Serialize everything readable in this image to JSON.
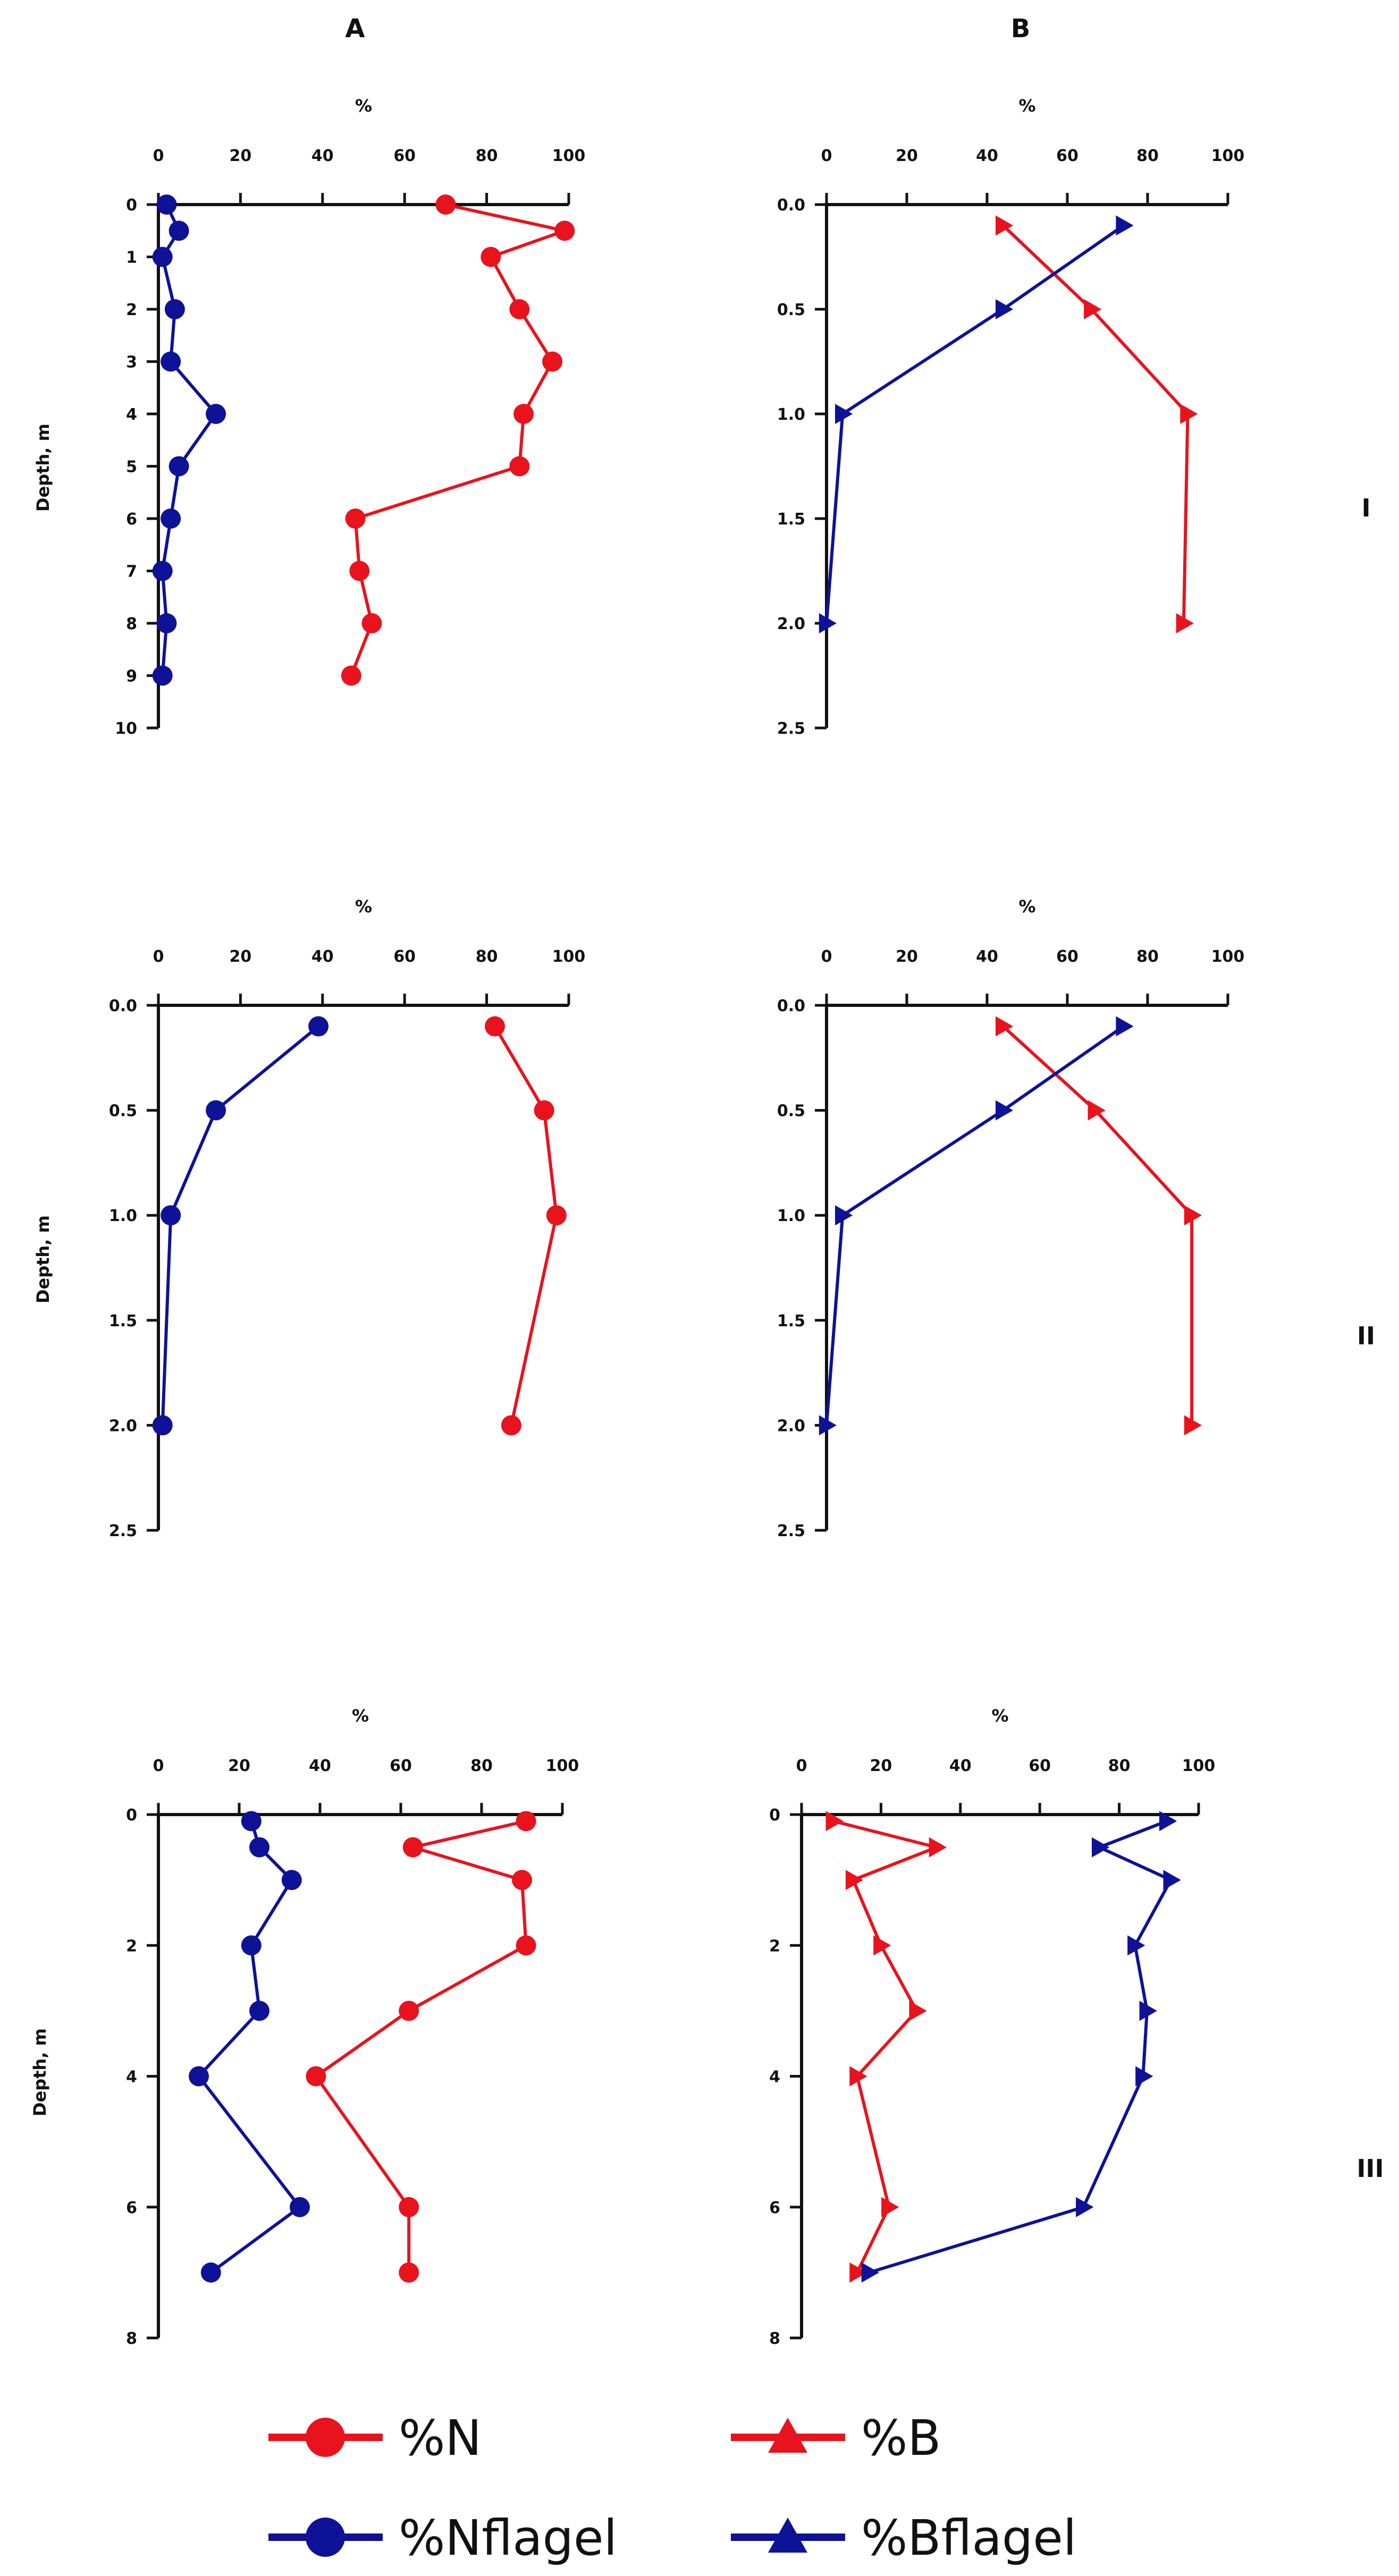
{
  "column_titles": [
    "A",
    "B"
  ],
  "row_labels": [
    "I",
    "II",
    "III"
  ],
  "legend": [
    {
      "label": "%N",
      "marker": "circle",
      "color": "#e8131d"
    },
    {
      "label": "%B",
      "marker": "triangle",
      "color": "#e8131d"
    },
    {
      "label": "%Nflagel",
      "marker": "circle",
      "color": "#0e1296"
    },
    {
      "label": "%Bflagel",
      "marker": "triangle",
      "color": "#0e1296"
    }
  ],
  "colors": {
    "red": "#e8131d",
    "blue": "#0e1296",
    "axis": "#111111"
  },
  "chart_data": [
    {
      "id": "I-A",
      "type": "line",
      "column": "A",
      "row": "I",
      "xlabel": "%",
      "ylabel": "Depth, m",
      "xlim": [
        0,
        100
      ],
      "xticks": [
        0,
        20,
        40,
        60,
        80,
        100
      ],
      "xtick_labels": [
        "0",
        "20",
        "40",
        "60",
        "80",
        "100"
      ],
      "ylim": [
        0,
        10
      ],
      "yticks": [
        0,
        1,
        2,
        3,
        4,
        5,
        6,
        7,
        8,
        9,
        10
      ],
      "ytick_labels": [
        "0",
        "1",
        "2",
        "3",
        "4",
        "5",
        "6",
        "7",
        "8",
        "9",
        "10"
      ],
      "series": [
        {
          "name": "%N",
          "marker": "circle",
          "color": "#e8131d",
          "points": [
            [
              70,
              0
            ],
            [
              99,
              0.5
            ],
            [
              81,
              1
            ],
            [
              88,
              2
            ],
            [
              96,
              3
            ],
            [
              89,
              4
            ],
            [
              88,
              5
            ],
            [
              48,
              6
            ],
            [
              49,
              7
            ],
            [
              52,
              8
            ],
            [
              47,
              9
            ]
          ]
        },
        {
          "name": "%Nflagel",
          "marker": "circle",
          "color": "#0e1296",
          "points": [
            [
              2,
              0
            ],
            [
              5,
              0.5
            ],
            [
              1,
              1
            ],
            [
              4,
              2
            ],
            [
              3,
              3
            ],
            [
              14,
              4
            ],
            [
              5,
              5
            ],
            [
              3,
              6
            ],
            [
              1,
              7
            ],
            [
              2,
              8
            ],
            [
              1,
              9
            ]
          ]
        }
      ]
    },
    {
      "id": "I-B",
      "type": "line",
      "column": "B",
      "row": "I",
      "xlabel": "%",
      "ylabel": "",
      "xlim": [
        0,
        100
      ],
      "xticks": [
        0,
        20,
        40,
        60,
        80,
        100
      ],
      "xtick_labels": [
        "0",
        "20",
        "40",
        "60",
        "80",
        "100"
      ],
      "ylim": [
        0,
        2.5
      ],
      "yticks": [
        0,
        0.5,
        1,
        1.5,
        2,
        2.5
      ],
      "ytick_labels": [
        "0.0",
        "0.5",
        "1.0",
        "1.5",
        "2.0",
        "2.5"
      ],
      "series": [
        {
          "name": "%B",
          "marker": "triangle",
          "color": "#e8131d",
          "points": [
            [
              44,
              0.1
            ],
            [
              66,
              0.5
            ],
            [
              90,
              1
            ],
            [
              89,
              2
            ]
          ]
        },
        {
          "name": "%Bflagel",
          "marker": "triangle",
          "color": "#0e1296",
          "points": [
            [
              74,
              0.1
            ],
            [
              44,
              0.5
            ],
            [
              4,
              1
            ],
            [
              0,
              2
            ]
          ]
        }
      ]
    },
    {
      "id": "II-A",
      "type": "line",
      "column": "A",
      "row": "II",
      "xlabel": "%",
      "ylabel": "Depth, m",
      "xlim": [
        0,
        100
      ],
      "xticks": [
        0,
        20,
        40,
        60,
        80,
        100
      ],
      "xtick_labels": [
        "0",
        "20",
        "40",
        "60",
        "80",
        "100"
      ],
      "ylim": [
        0,
        2.5
      ],
      "yticks": [
        0,
        0.5,
        1,
        1.5,
        2,
        2.5
      ],
      "ytick_labels": [
        "0.0",
        "0.5",
        "1.0",
        "1.5",
        "2.0",
        "2.5"
      ],
      "series": [
        {
          "name": "%N",
          "marker": "circle",
          "color": "#e8131d",
          "points": [
            [
              82,
              0.1
            ],
            [
              94,
              0.5
            ],
            [
              97,
              1
            ],
            [
              86,
              2
            ]
          ]
        },
        {
          "name": "%Nflagel",
          "marker": "circle",
          "color": "#0e1296",
          "points": [
            [
              39,
              0.1
            ],
            [
              14,
              0.5
            ],
            [
              3,
              1
            ],
            [
              1,
              2
            ]
          ]
        }
      ]
    },
    {
      "id": "II-B",
      "type": "line",
      "column": "B",
      "row": "II",
      "xlabel": "%",
      "ylabel": "",
      "xlim": [
        0,
        100
      ],
      "xticks": [
        0,
        20,
        40,
        60,
        80,
        100
      ],
      "xtick_labels": [
        "0",
        "20",
        "40",
        "60",
        "80",
        "100"
      ],
      "ylim": [
        0,
        2.5
      ],
      "yticks": [
        0,
        0.5,
        1,
        1.5,
        2,
        2.5
      ],
      "ytick_labels": [
        "0.0",
        "0.5",
        "1.0",
        "1.5",
        "2.0",
        "2.5"
      ],
      "series": [
        {
          "name": "%B",
          "marker": "triangle",
          "color": "#e8131d",
          "points": [
            [
              44,
              0.1
            ],
            [
              67,
              0.5
            ],
            [
              91,
              1
            ],
            [
              91,
              2
            ]
          ]
        },
        {
          "name": "%Bflagel",
          "marker": "triangle",
          "color": "#0e1296",
          "points": [
            [
              74,
              0.1
            ],
            [
              44,
              0.5
            ],
            [
              4,
              1
            ],
            [
              0,
              2
            ]
          ]
        }
      ]
    },
    {
      "id": "III-A",
      "type": "line",
      "column": "A",
      "row": "III",
      "xlabel": "%",
      "ylabel": "Depth, m",
      "xlim": [
        0,
        100
      ],
      "xticks": [
        0,
        20,
        40,
        60,
        80,
        100
      ],
      "xtick_labels": [
        "0",
        "20",
        "40",
        "60",
        "80",
        "100"
      ],
      "ylim": [
        0,
        8
      ],
      "yticks": [
        0,
        2,
        4,
        6,
        8
      ],
      "ytick_labels": [
        "0",
        "2",
        "4",
        "6",
        "8"
      ],
      "series": [
        {
          "name": "%N",
          "marker": "circle",
          "color": "#e8131d",
          "points": [
            [
              91,
              0.1
            ],
            [
              63,
              0.5
            ],
            [
              90,
              1
            ],
            [
              91,
              2
            ],
            [
              62,
              3
            ],
            [
              39,
              4
            ],
            [
              62,
              6
            ],
            [
              62,
              7
            ]
          ]
        },
        {
          "name": "%Nflagel",
          "marker": "circle",
          "color": "#0e1296",
          "points": [
            [
              23,
              0.1
            ],
            [
              25,
              0.5
            ],
            [
              33,
              1
            ],
            [
              23,
              2
            ],
            [
              25,
              3
            ],
            [
              10,
              4
            ],
            [
              35,
              6
            ],
            [
              13,
              7
            ]
          ]
        }
      ]
    },
    {
      "id": "III-B",
      "type": "line",
      "column": "B",
      "row": "III",
      "xlabel": "%",
      "ylabel": "",
      "xlim": [
        0,
        100
      ],
      "xticks": [
        0,
        20,
        40,
        60,
        80,
        100
      ],
      "xtick_labels": [
        "0",
        "20",
        "40",
        "60",
        "80",
        "100"
      ],
      "ylim": [
        0,
        8
      ],
      "yticks": [
        0,
        2,
        4,
        6,
        8
      ],
      "ytick_labels": [
        "0",
        "2",
        "4",
        "6",
        "8"
      ],
      "series": [
        {
          "name": "%B",
          "marker": "triangle",
          "color": "#e8131d",
          "points": [
            [
              8,
              0.1
            ],
            [
              34,
              0.5
            ],
            [
              13,
              1
            ],
            [
              20,
              2
            ],
            [
              29,
              3
            ],
            [
              14,
              4
            ],
            [
              22,
              6
            ],
            [
              14,
              7
            ]
          ]
        },
        {
          "name": "%Bflagel",
          "marker": "triangle",
          "color": "#0e1296",
          "points": [
            [
              92,
              0.1
            ],
            [
              75,
              0.5
            ],
            [
              93,
              1
            ],
            [
              84,
              2
            ],
            [
              87,
              3
            ],
            [
              86,
              4
            ],
            [
              71,
              6
            ],
            [
              17,
              7
            ]
          ]
        }
      ]
    }
  ]
}
